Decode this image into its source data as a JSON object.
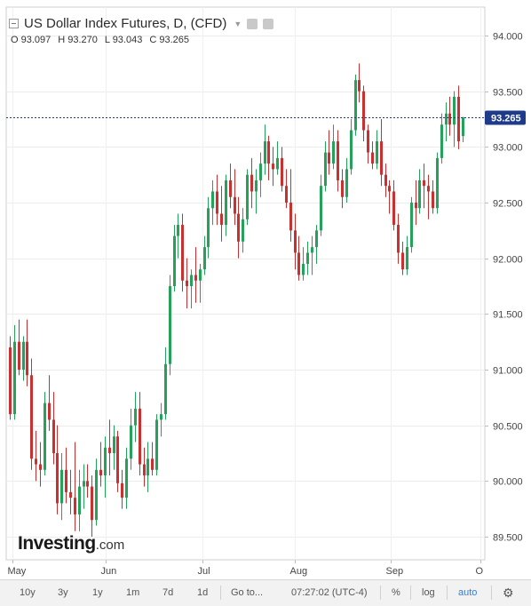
{
  "legend": {
    "title": "US Dollar Index Futures, D, (CFD)",
    "open": "O 93.097",
    "high": "H 93.270",
    "low": "L 93.043",
    "close": "C 93.265"
  },
  "last_price_label": "93.265",
  "brand": {
    "name": "Investing",
    "tld": ".com"
  },
  "toolbar": {
    "r10y": "10y",
    "r3y": "3y",
    "r1y": "1y",
    "r1m": "1m",
    "r7d": "7d",
    "r1d": "1d",
    "goto": "Go to...",
    "time": "07:27:02 (UTC-4)",
    "percent": "%",
    "log": "log",
    "auto": "auto"
  },
  "colors": {
    "up": "#26a15a",
    "down": "#c8312f",
    "last_line": "#1e3a8a",
    "label_bg": "#1e3a8a"
  },
  "chart_data": {
    "type": "candlestick",
    "title": "US Dollar Index Futures, D, (CFD)",
    "ylim": [
      89.3,
      94.3
    ],
    "y_ticks": [
      "94.000",
      "93.500",
      "93.000",
      "92.500",
      "92.000",
      "91.500",
      "91.000",
      "90.500",
      "90.000",
      "89.500"
    ],
    "x_labels": [
      "May",
      "Jun",
      "Jul",
      "Aug",
      "Sep",
      "O"
    ],
    "last_close": 93.265,
    "candles": [
      [
        91.2,
        91.3,
        90.55,
        90.6
      ],
      [
        90.6,
        91.4,
        90.55,
        91.25
      ],
      [
        91.25,
        91.45,
        90.95,
        91.0
      ],
      [
        91.0,
        91.3,
        90.9,
        91.25
      ],
      [
        91.25,
        91.45,
        90.85,
        90.95
      ],
      [
        90.95,
        91.1,
        90.1,
        90.2
      ],
      [
        90.2,
        90.45,
        90.0,
        90.15
      ],
      [
        90.15,
        90.35,
        89.95,
        90.1
      ],
      [
        90.1,
        90.8,
        90.05,
        90.7
      ],
      [
        90.7,
        90.95,
        90.45,
        90.55
      ],
      [
        90.55,
        90.8,
        90.15,
        90.25
      ],
      [
        90.25,
        90.5,
        89.7,
        89.8
      ],
      [
        89.8,
        90.25,
        89.65,
        90.1
      ],
      [
        90.1,
        90.3,
        89.8,
        89.9
      ],
      [
        89.9,
        90.1,
        89.7,
        89.85
      ],
      [
        89.85,
        90.35,
        89.55,
        89.7
      ],
      [
        89.7,
        90.1,
        89.55,
        89.95
      ],
      [
        89.95,
        90.15,
        89.75,
        90.0
      ],
      [
        90.0,
        90.15,
        89.85,
        89.95
      ],
      [
        89.95,
        90.05,
        89.5,
        89.65
      ],
      [
        89.65,
        90.2,
        89.6,
        90.1
      ],
      [
        90.1,
        90.35,
        89.95,
        90.05
      ],
      [
        90.05,
        90.4,
        89.85,
        90.3
      ],
      [
        90.3,
        90.55,
        90.05,
        90.25
      ],
      [
        90.25,
        90.5,
        90.1,
        90.4
      ],
      [
        90.4,
        90.45,
        89.9,
        89.98
      ],
      [
        89.98,
        90.1,
        89.75,
        89.85
      ],
      [
        89.85,
        90.3,
        89.75,
        90.2
      ],
      [
        90.2,
        90.65,
        90.1,
        90.5
      ],
      [
        90.5,
        90.8,
        90.35,
        90.65
      ],
      [
        90.65,
        90.8,
        90.05,
        90.15
      ],
      [
        90.15,
        90.3,
        89.95,
        90.05
      ],
      [
        90.05,
        90.35,
        89.9,
        90.2
      ],
      [
        90.2,
        90.35,
        90.05,
        90.1
      ],
      [
        90.1,
        90.6,
        90.05,
        90.55
      ],
      [
        90.55,
        90.7,
        90.4,
        90.6
      ],
      [
        90.6,
        91.2,
        90.55,
        91.05
      ],
      [
        91.05,
        91.85,
        90.95,
        91.75
      ],
      [
        91.75,
        92.3,
        91.7,
        92.2
      ],
      [
        92.2,
        92.4,
        92.0,
        92.3
      ],
      [
        92.3,
        92.4,
        91.7,
        91.8
      ],
      [
        91.8,
        92.0,
        91.55,
        91.75
      ],
      [
        91.75,
        91.9,
        91.55,
        91.85
      ],
      [
        91.85,
        92.1,
        91.6,
        91.8
      ],
      [
        91.8,
        91.95,
        91.6,
        91.9
      ],
      [
        91.9,
        92.2,
        91.85,
        92.1
      ],
      [
        92.1,
        92.55,
        92.0,
        92.45
      ],
      [
        92.45,
        92.7,
        92.3,
        92.6
      ],
      [
        92.6,
        92.75,
        92.3,
        92.4
      ],
      [
        92.4,
        92.65,
        92.15,
        92.3
      ],
      [
        92.3,
        92.75,
        92.2,
        92.7
      ],
      [
        92.7,
        92.85,
        92.45,
        92.55
      ],
      [
        92.55,
        92.8,
        92.3,
        92.4
      ],
      [
        92.4,
        92.55,
        92.0,
        92.15
      ],
      [
        92.15,
        92.45,
        92.05,
        92.35
      ],
      [
        92.35,
        92.8,
        92.3,
        92.75
      ],
      [
        92.75,
        92.9,
        92.45,
        92.6
      ],
      [
        92.6,
        92.8,
        92.4,
        92.7
      ],
      [
        92.7,
        92.95,
        92.55,
        92.85
      ],
      [
        92.85,
        93.2,
        92.75,
        93.05
      ],
      [
        93.05,
        93.1,
        92.7,
        92.85
      ],
      [
        92.85,
        93.0,
        92.65,
        92.8
      ],
      [
        92.8,
        93.05,
        92.75,
        92.9
      ],
      [
        92.9,
        93.0,
        92.6,
        92.65
      ],
      [
        92.65,
        92.8,
        92.45,
        92.5
      ],
      [
        92.5,
        92.8,
        92.15,
        92.25
      ],
      [
        92.25,
        92.4,
        91.9,
        92.05
      ],
      [
        92.05,
        92.2,
        91.8,
        91.85
      ],
      [
        91.85,
        92.1,
        91.8,
        91.95
      ],
      [
        91.95,
        92.15,
        91.85,
        92.05
      ],
      [
        92.05,
        92.2,
        91.85,
        92.1
      ],
      [
        92.1,
        92.3,
        91.95,
        92.25
      ],
      [
        92.25,
        92.75,
        92.2,
        92.65
      ],
      [
        92.65,
        93.05,
        92.6,
        92.95
      ],
      [
        92.95,
        93.15,
        92.75,
        92.85
      ],
      [
        92.85,
        93.2,
        92.8,
        93.05
      ],
      [
        93.05,
        93.15,
        92.6,
        92.7
      ],
      [
        92.7,
        92.8,
        92.45,
        92.55
      ],
      [
        92.55,
        92.9,
        92.5,
        92.8
      ],
      [
        92.8,
        93.25,
        92.75,
        93.15
      ],
      [
        93.15,
        93.65,
        93.1,
        93.6
      ],
      [
        93.6,
        93.75,
        93.4,
        93.5
      ],
      [
        93.5,
        93.55,
        93.05,
        93.15
      ],
      [
        93.15,
        93.2,
        92.85,
        92.95
      ],
      [
        92.95,
        93.05,
        92.8,
        92.85
      ],
      [
        92.85,
        93.15,
        92.8,
        93.05
      ],
      [
        93.05,
        93.25,
        92.65,
        92.75
      ],
      [
        92.75,
        92.85,
        92.55,
        92.65
      ],
      [
        92.65,
        92.7,
        92.4,
        92.6
      ],
      [
        92.6,
        92.7,
        92.25,
        92.3
      ],
      [
        92.3,
        92.4,
        91.95,
        92.05
      ],
      [
        92.05,
        92.15,
        91.85,
        91.9
      ],
      [
        91.9,
        92.2,
        91.85,
        92.1
      ],
      [
        92.1,
        92.55,
        92.05,
        92.5
      ],
      [
        92.5,
        92.7,
        92.3,
        92.45
      ],
      [
        92.45,
        92.8,
        92.4,
        92.7
      ],
      [
        92.7,
        92.85,
        92.45,
        92.65
      ],
      [
        92.65,
        92.75,
        92.35,
        92.6
      ],
      [
        92.6,
        92.7,
        92.4,
        92.45
      ],
      [
        92.45,
        92.95,
        92.4,
        92.9
      ],
      [
        92.9,
        93.3,
        92.85,
        93.2
      ],
      [
        93.2,
        93.4,
        93.05,
        93.3
      ],
      [
        93.3,
        93.45,
        93.1,
        93.2
      ],
      [
        93.2,
        93.5,
        93.0,
        93.45
      ],
      [
        93.45,
        93.55,
        92.98,
        93.05
      ],
      [
        93.097,
        93.27,
        93.043,
        93.265
      ]
    ]
  }
}
